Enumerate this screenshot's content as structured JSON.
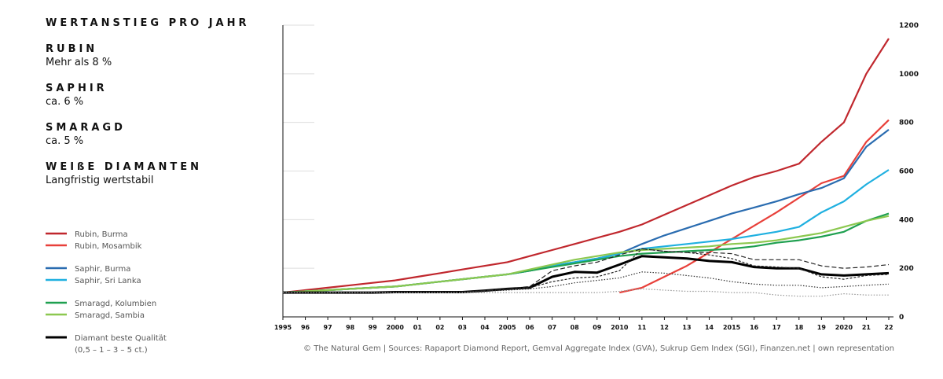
{
  "chart_data": {
    "type": "line",
    "title": "WERTANSTIEG PRO JAHR",
    "highlights": [
      {
        "heading": "RUBIN",
        "text": "Mehr als 8 %"
      },
      {
        "heading": "SAPHIR",
        "text": "ca. 6 %"
      },
      {
        "heading": "SMARAGD",
        "text": "ca. 5 %"
      },
      {
        "heading": "WEIßE DIAMANTEN",
        "text": "Langfristig wertstabil"
      }
    ],
    "source": "© The Natural Gem | Sources: Rapaport Diamond Report, Gemval Aggregate Index (GVA), Sukrup Gem Index (SGI), Finanzen.net | own representation",
    "categories": [
      "1995",
      "96",
      "97",
      "98",
      "99",
      "2000",
      "01",
      "02",
      "03",
      "04",
      "2005",
      "06",
      "07",
      "08",
      "09",
      "2010",
      "11",
      "12",
      "13",
      "14",
      "2015",
      "16",
      "17",
      "18",
      "19",
      "2020",
      "21",
      "22"
    ],
    "ylim": [
      0,
      1200
    ],
    "yticks": [
      0,
      200,
      400,
      600,
      800,
      1000,
      1200
    ],
    "grid": true,
    "series": [
      {
        "name": "Rubin, Burma",
        "color": "#c0272d",
        "group": 0,
        "values": [
          100,
          110,
          120,
          130,
          140,
          150,
          165,
          180,
          195,
          210,
          225,
          250,
          275,
          300,
          325,
          350,
          380,
          420,
          460,
          500,
          540,
          575,
          600,
          630,
          720,
          800,
          1000,
          1145
        ]
      },
      {
        "name": "Rubin, Mosambik",
        "color": "#e8403a",
        "group": 0,
        "values": [
          null,
          null,
          null,
          null,
          null,
          null,
          null,
          null,
          null,
          null,
          null,
          null,
          null,
          null,
          null,
          100,
          120,
          165,
          210,
          265,
          320,
          375,
          430,
          490,
          550,
          580,
          720,
          810
        ]
      },
      {
        "name": "Saphir, Burma",
        "color": "#2a6cb0",
        "group": 1,
        "values": [
          100,
          105,
          110,
          115,
          120,
          125,
          135,
          145,
          155,
          165,
          175,
          190,
          210,
          225,
          240,
          260,
          300,
          335,
          365,
          395,
          425,
          450,
          475,
          505,
          530,
          570,
          700,
          770
        ]
      },
      {
        "name": "Saphir, Sri Lanka",
        "color": "#1fb0e0",
        "group": 1,
        "values": [
          100,
          105,
          110,
          115,
          120,
          125,
          135,
          145,
          155,
          165,
          175,
          190,
          210,
          225,
          240,
          260,
          280,
          290,
          300,
          310,
          320,
          335,
          350,
          370,
          430,
          475,
          545,
          605
        ]
      },
      {
        "name": "Smaragd, Kolumbien",
        "color": "#1fa050",
        "group": 2,
        "values": [
          100,
          105,
          110,
          115,
          120,
          125,
          135,
          145,
          155,
          165,
          175,
          190,
          205,
          220,
          235,
          250,
          260,
          265,
          270,
          275,
          280,
          290,
          305,
          315,
          330,
          350,
          395,
          425
        ]
      },
      {
        "name": "Smaragd, Sambia",
        "color": "#8cc850",
        "group": 2,
        "values": [
          100,
          105,
          110,
          115,
          120,
          125,
          135,
          145,
          155,
          165,
          175,
          195,
          215,
          235,
          250,
          265,
          275,
          280,
          285,
          290,
          300,
          305,
          315,
          330,
          345,
          370,
          395,
          415
        ]
      },
      {
        "name": "Diamant beste Qualität",
        "note": "(0,5 – 1 – 3 – 5 ct.)",
        "color": "#000000",
        "group": 3,
        "width": 3,
        "values": [
          100,
          100,
          100,
          100,
          100,
          102,
          102,
          102,
          102,
          108,
          115,
          120,
          165,
          185,
          182,
          215,
          250,
          245,
          240,
          230,
          225,
          205,
          200,
          200,
          175,
          170,
          175,
          180
        ]
      },
      {
        "color": "#222222",
        "dash": "6 3",
        "values": [
          100,
          100,
          100,
          100,
          100,
          102,
          102,
          102,
          102,
          108,
          115,
          125,
          190,
          210,
          225,
          255,
          280,
          270,
          265,
          265,
          260,
          235,
          235,
          235,
          210,
          200,
          205,
          215
        ]
      },
      {
        "color": "#222222",
        "dash": "3 2",
        "values": [
          100,
          100,
          100,
          100,
          100,
          102,
          102,
          102,
          102,
          108,
          115,
          120,
          145,
          160,
          165,
          190,
          280,
          270,
          265,
          255,
          240,
          210,
          205,
          200,
          165,
          155,
          170,
          175
        ]
      },
      {
        "color": "#333333",
        "dash": "1.5 2",
        "values": [
          100,
          100,
          100,
          100,
          100,
          101,
          101,
          101,
          101,
          105,
          110,
          115,
          125,
          140,
          150,
          160,
          185,
          180,
          170,
          160,
          145,
          135,
          130,
          130,
          120,
          125,
          130,
          135
        ]
      },
      {
        "color": "#999999",
        "dash": "1.5 2",
        "values": [
          100,
          100,
          100,
          100,
          100,
          100,
          100,
          100,
          100,
          100,
          100,
          100,
          100,
          100,
          100,
          105,
          115,
          110,
          105,
          105,
          100,
          100,
          90,
          85,
          85,
          95,
          90,
          90
        ]
      }
    ]
  }
}
